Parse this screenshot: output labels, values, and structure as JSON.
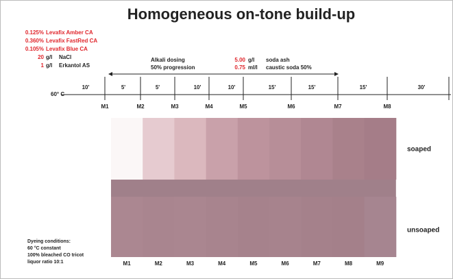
{
  "title": "Homogeneous on-tone build-up",
  "recipe": [
    {
      "amount": "0.125%",
      "name": "Levafix Amber CA"
    },
    {
      "amount": "0.360%",
      "name": "Levafix FastRed CA"
    },
    {
      "amount": "0.105%",
      "name": "Levafix Blue CA"
    },
    {
      "amount": "20",
      "unit": "g/l",
      "name": "NaCl"
    },
    {
      "amount": "1",
      "unit": "g/l",
      "name": "Erkantol AS"
    }
  ],
  "alkali": {
    "label": [
      "Alkali dosing",
      "50% progression"
    ],
    "dosing": [
      {
        "amount": "5.00",
        "unit": "g/l",
        "name": "soda ash"
      },
      {
        "amount": "0.75",
        "unit": "ml/l",
        "name": "caustic soda 50%"
      }
    ]
  },
  "timeline": {
    "temperature": "60° C",
    "intervals": [
      "10'",
      "5'",
      "5'",
      "10'",
      "10'",
      "15'",
      "15'",
      "15'",
      "30'"
    ],
    "markers": [
      "M1",
      "M2",
      "M3",
      "M4",
      "M5",
      "M6",
      "M7",
      "M8"
    ]
  },
  "swatches": {
    "rows": [
      {
        "label": "soaped",
        "colors": [
          "#fbf7f7",
          "#e6cbd0",
          "#dbb8be",
          "#c9a1aa",
          "#bd939d",
          "#b78e98",
          "#b08792",
          "#a9818b",
          "#a57d88"
        ]
      },
      {
        "label": "unsoaped",
        "colors": [
          "#ab8791",
          "#a9858f",
          "#aa8690",
          "#a8848e",
          "#a6828c",
          "#a7838d",
          "#a5818b",
          "#a4808a",
          "#a68590"
        ]
      }
    ],
    "columns": [
      "M1",
      "M2",
      "M3",
      "M4",
      "M5",
      "M6",
      "M7",
      "M8",
      "M9"
    ]
  },
  "conditions": [
    "Dyeing conditions:",
    "60 °C constant",
    "100% bleached CO tricot",
    "liquor ratio 10:1"
  ]
}
